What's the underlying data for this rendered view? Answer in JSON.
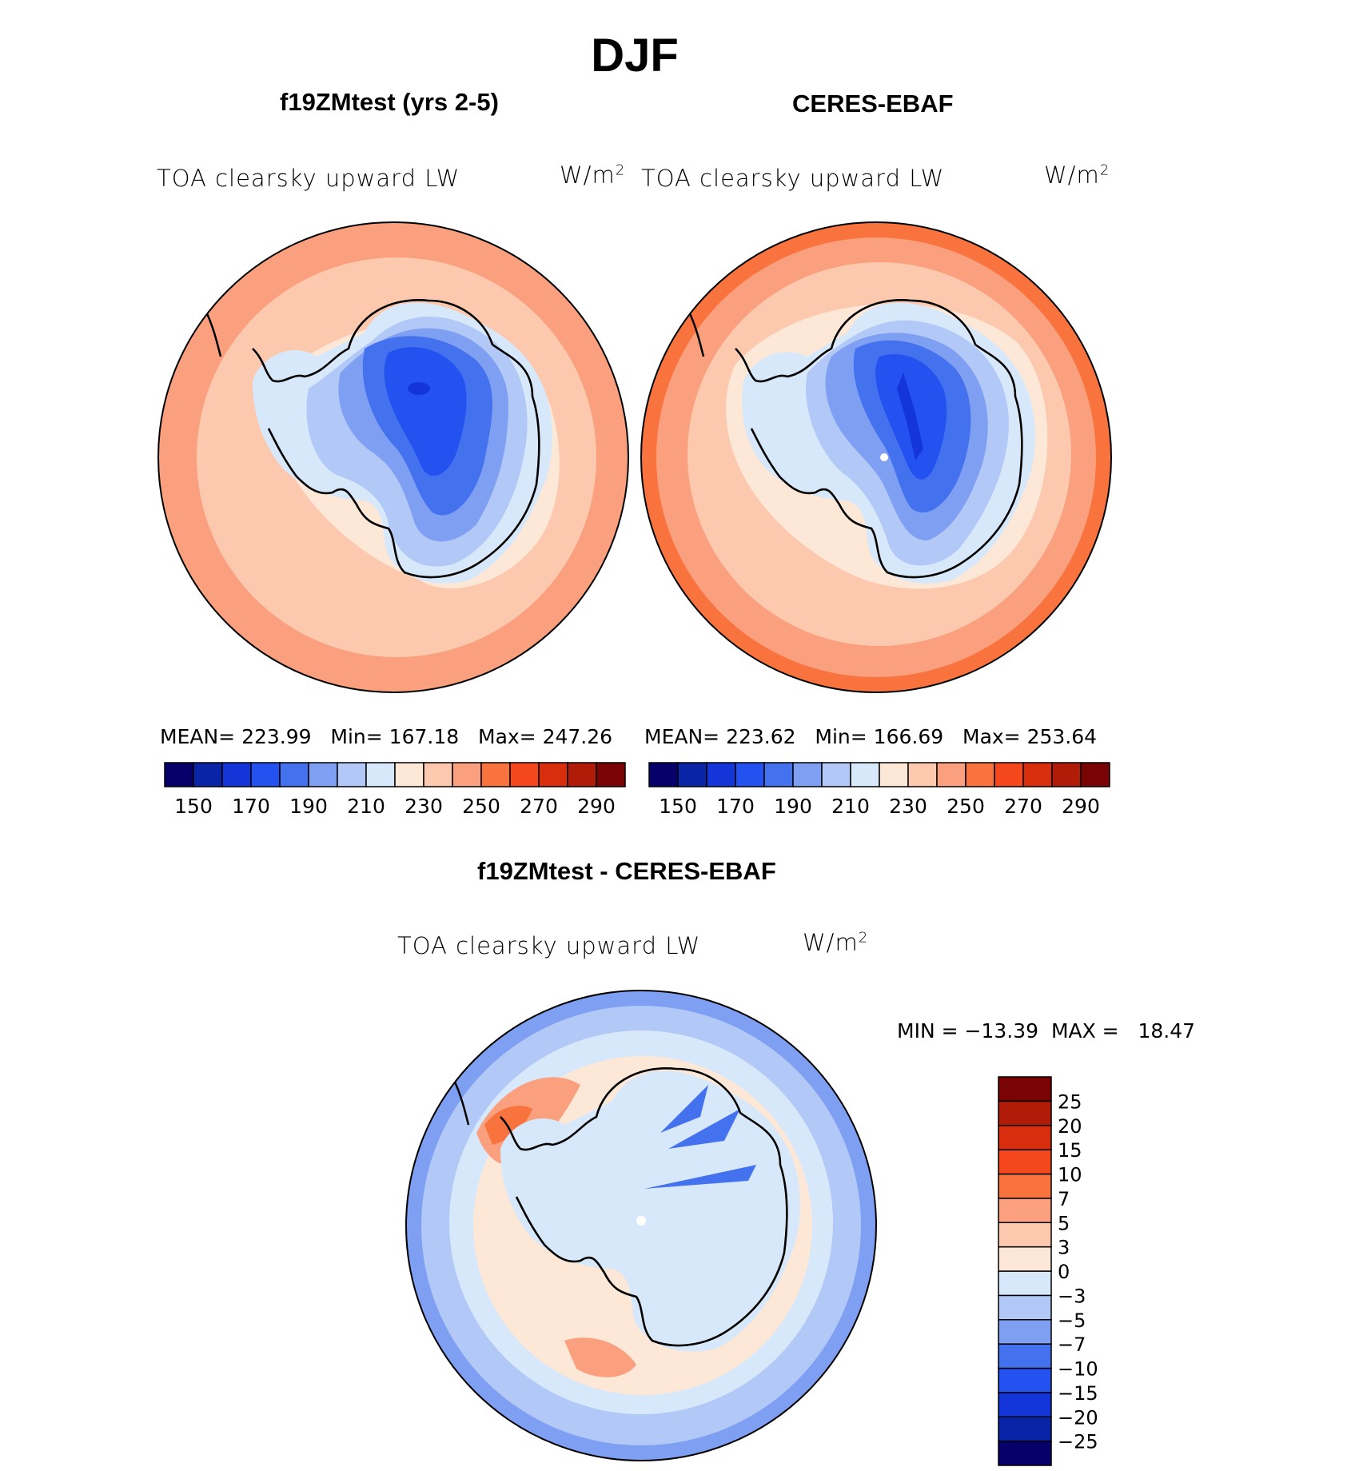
{
  "page": {
    "title": "DJF",
    "variable": "TOA clearsky upward LW",
    "units_base": "W/m",
    "units_sup": "2"
  },
  "panels": {
    "left": {
      "title": "f19ZMtest (yrs 2-5)",
      "mean_label": "MEAN=",
      "mean": "223.99",
      "min_label": "Min=",
      "min": "167.18",
      "max_label": "Max=",
      "max": "247.26"
    },
    "right": {
      "title": "CERES-EBAF",
      "mean_label": "MEAN=",
      "mean": "223.62",
      "min_label": "Min=",
      "min": "166.69",
      "max_label": "Max=",
      "max": "253.64"
    },
    "diff": {
      "title": "f19ZMtest - CERES-EBAF",
      "min_label": "MIN =",
      "min": "−13.39",
      "max_label": "MAX =",
      "max": "18.47"
    }
  },
  "colorbars": {
    "abs": {
      "colors": [
        "#08006a",
        "#0a24a8",
        "#1436d8",
        "#2452f0",
        "#4472ee",
        "#7f9ff2",
        "#b2c8f6",
        "#d8e8fb",
        "#fde7d6",
        "#fcc8ae",
        "#faa07e",
        "#f9733f",
        "#f4481c",
        "#d92e0e",
        "#b01c08",
        "#7a0303"
      ],
      "labels": [
        "150",
        "170",
        "190",
        "210",
        "230",
        "250",
        "270",
        "290"
      ]
    },
    "diff": {
      "colors": [
        "#08006a",
        "#0a24a8",
        "#1436d8",
        "#2452f0",
        "#4472ee",
        "#7f9ff2",
        "#b2c8f6",
        "#d8e8fb",
        "#fde7d6",
        "#fcc8ae",
        "#faa07e",
        "#f9733f",
        "#f4481c",
        "#d92e0e",
        "#b01c08",
        "#7a0303"
      ],
      "labels": [
        "−25",
        "−20",
        "−15",
        "−10",
        "−7",
        "−5",
        "−3",
        "0",
        "3",
        "5",
        "7",
        "10",
        "15",
        "20",
        "25"
      ]
    }
  }
}
